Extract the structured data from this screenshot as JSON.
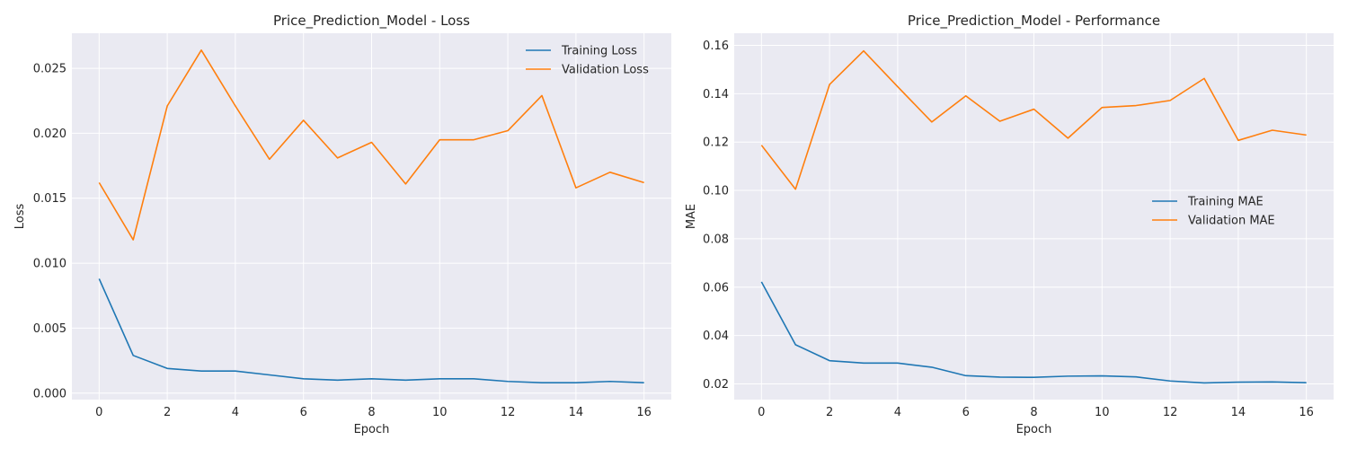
{
  "chart_data": [
    {
      "type": "line",
      "title": "Price_Prediction_Model - Loss",
      "xlabel": "Epoch",
      "ylabel": "Loss",
      "xlim": [
        -0.8,
        16.8
      ],
      "ylim": [
        -0.0005,
        0.0277
      ],
      "xticks": [
        0,
        2,
        4,
        6,
        8,
        10,
        12,
        14,
        16
      ],
      "yticks": [
        0.0,
        0.005,
        0.01,
        0.015,
        0.02,
        0.025
      ],
      "ytick_decimals": 3,
      "legend_position": "top-right",
      "grid": true,
      "x": [
        0,
        1,
        2,
        3,
        4,
        5,
        6,
        7,
        8,
        9,
        10,
        11,
        12,
        13,
        14,
        15,
        16
      ],
      "series": [
        {
          "name": "Training Loss",
          "color": "#1f77b4",
          "values": [
            0.0088,
            0.0029,
            0.0019,
            0.0017,
            0.0017,
            0.0014,
            0.0011,
            0.001,
            0.0011,
            0.001,
            0.0011,
            0.0011,
            0.0009,
            0.0008,
            0.0008,
            0.0009,
            0.0008
          ]
        },
        {
          "name": "Validation Loss",
          "color": "#ff7f0e",
          "values": [
            0.0162,
            0.0118,
            0.0221,
            0.0264,
            0.0221,
            0.018,
            0.021,
            0.0181,
            0.0193,
            0.0161,
            0.0195,
            0.0195,
            0.0202,
            0.0229,
            0.0158,
            0.017,
            0.0162
          ]
        }
      ]
    },
    {
      "type": "line",
      "title": "Price_Prediction_Model - Performance",
      "xlabel": "Epoch",
      "ylabel": "MAE",
      "xlim": [
        -0.8,
        16.8
      ],
      "ylim": [
        0.0135,
        0.165
      ],
      "xticks": [
        0,
        2,
        4,
        6,
        8,
        10,
        12,
        14,
        16
      ],
      "yticks": [
        0.02,
        0.04,
        0.06,
        0.08,
        0.1,
        0.12,
        0.14,
        0.16
      ],
      "ytick_decimals": 2,
      "legend_position": "center-right",
      "grid": true,
      "x": [
        0,
        1,
        2,
        3,
        4,
        5,
        6,
        7,
        8,
        9,
        10,
        11,
        12,
        13,
        14,
        15,
        16
      ],
      "series": [
        {
          "name": "Training MAE",
          "color": "#1f77b4",
          "values": [
            0.0622,
            0.0362,
            0.0296,
            0.0286,
            0.0286,
            0.0269,
            0.0234,
            0.0228,
            0.0227,
            0.0232,
            0.0233,
            0.0229,
            0.0212,
            0.0204,
            0.0207,
            0.0208,
            0.0205
          ]
        },
        {
          "name": "Validation MAE",
          "color": "#ff7f0e",
          "values": [
            0.1187,
            0.1005,
            0.1438,
            0.1577,
            0.1429,
            0.1283,
            0.1391,
            0.1286,
            0.1336,
            0.1216,
            0.1343,
            0.1351,
            0.1372,
            0.1463,
            0.1207,
            0.1249,
            0.1229
          ]
        }
      ]
    }
  ]
}
